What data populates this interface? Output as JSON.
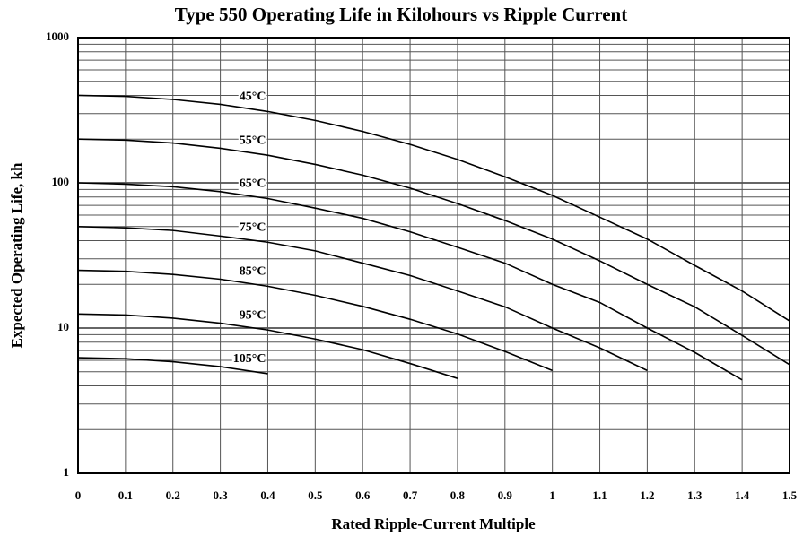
{
  "chart_data": {
    "type": "line",
    "title": "Type 550 Operating Life in Kilohours vs Ripple Current",
    "xlabel": "Rated Ripple-Current Multiple",
    "ylabel": "Expected Operating Life, kh",
    "x": [
      0,
      0.1,
      0.2,
      0.3,
      0.4,
      0.5,
      0.6,
      0.7,
      0.8,
      0.9,
      1.0,
      1.1,
      1.2,
      1.3,
      1.4,
      1.5
    ],
    "series": [
      {
        "name": "45°C",
        "color": "#000000",
        "values": [
          400,
          394,
          375,
          347,
          310,
          269,
          226,
          184,
          145,
          110,
          82,
          58,
          41,
          27,
          18,
          11.2
        ]
      },
      {
        "name": "55°C",
        "color": "#000000",
        "values": [
          200,
          197,
          188,
          173,
          155,
          134,
          113,
          92,
          72,
          55,
          41,
          29,
          20,
          14,
          8.9,
          5.6
        ]
      },
      {
        "name": "65°C",
        "color": "#000000",
        "values": [
          100,
          98,
          94,
          87,
          78,
          67,
          57,
          46,
          36,
          28,
          20,
          15,
          10,
          6.8,
          4.4,
          null
        ]
      },
      {
        "name": "75°C",
        "color": "#000000",
        "values": [
          50,
          49,
          47,
          43,
          39,
          34,
          28,
          23,
          18,
          14,
          10,
          7.3,
          5.1,
          null,
          null,
          null
        ]
      },
      {
        "name": "85°C",
        "color": "#000000",
        "values": [
          25,
          24.6,
          23.4,
          21.7,
          19.4,
          16.8,
          14.1,
          11.5,
          9.1,
          6.9,
          5.1,
          null,
          null,
          null,
          null,
          null
        ]
      },
      {
        "name": "95°C",
        "color": "#000000",
        "values": [
          12.5,
          12.3,
          11.7,
          10.8,
          9.7,
          8.4,
          7.1,
          5.7,
          4.5,
          null,
          null,
          null,
          null,
          null,
          null,
          null
        ]
      },
      {
        "name": "105°C",
        "color": "#000000",
        "values": [
          6.25,
          6.15,
          5.86,
          5.42,
          4.85,
          null,
          null,
          null,
          null,
          null,
          null,
          null,
          null,
          null,
          null,
          null
        ]
      }
    ],
    "xlim": [
      0,
      1.5
    ],
    "xticks": [
      0,
      0.1,
      0.2,
      0.3,
      0.4,
      0.5,
      0.6,
      0.7,
      0.8,
      0.9,
      1,
      1.1,
      1.2,
      1.3,
      1.4,
      1.5
    ],
    "ylim": [
      1,
      1000
    ],
    "yticks": [
      1,
      10,
      100,
      1000
    ],
    "yminorticks": [
      2,
      3,
      4,
      5,
      6,
      7,
      8,
      9,
      20,
      30,
      40,
      50,
      60,
      70,
      80,
      90,
      200,
      300,
      400,
      500,
      600,
      700,
      800,
      900
    ],
    "log_y": true,
    "grid": true
  }
}
